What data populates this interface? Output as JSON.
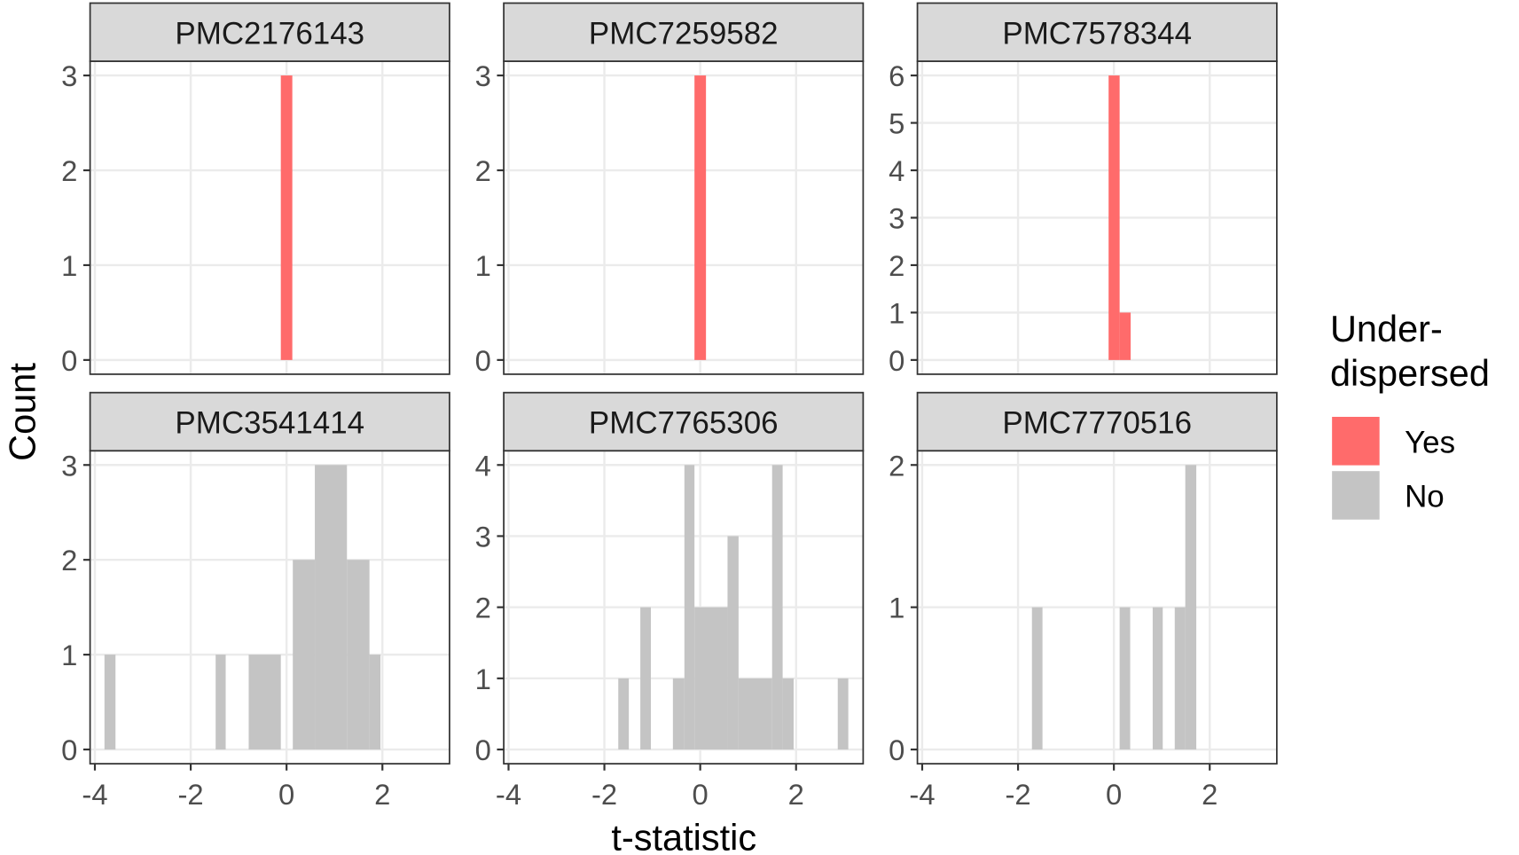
{
  "chart_data": {
    "type": "bar",
    "subtype": "faceted histogram",
    "xlabel": "t-statistic",
    "ylabel": "Count",
    "xlim": [
      -4.1,
      3.4
    ],
    "xticks": [
      -4,
      -2,
      0,
      2
    ],
    "grid": true,
    "legend": {
      "title": [
        "Under-",
        "dispersed"
      ],
      "placement": "right",
      "entries": [
        {
          "label": "Yes",
          "color": "#FF6B6B"
        },
        {
          "label": "No",
          "color": "#C4C4C4"
        }
      ]
    },
    "bar_format": "[x_start, x_end, count]",
    "panels": [
      {
        "title": "PMC2176143",
        "yticks": [
          0,
          1,
          2,
          3
        ],
        "ymax": 3,
        "group": "Yes",
        "bars": [
          [
            -0.12,
            0.12,
            3
          ]
        ]
      },
      {
        "title": "PMC7259582",
        "yticks": [
          0,
          1,
          2,
          3
        ],
        "ymax": 3,
        "group": "Yes",
        "bars": [
          [
            -0.12,
            0.12,
            3
          ]
        ]
      },
      {
        "title": "PMC7578344",
        "yticks": [
          0,
          1,
          2,
          3,
          4,
          5,
          6
        ],
        "ymax": 6,
        "group": "Yes",
        "bars": [
          [
            -0.11,
            0.12,
            6
          ],
          [
            0.12,
            0.35,
            1
          ]
        ]
      },
      {
        "title": "PMC3541414",
        "yticks": [
          0,
          1,
          2,
          3
        ],
        "ymax": 3,
        "group": "No",
        "bars": [
          [
            -3.8,
            -3.57,
            1
          ],
          [
            -1.48,
            -1.27,
            1
          ],
          [
            -0.79,
            -0.12,
            1
          ],
          [
            0.13,
            0.59,
            2
          ],
          [
            0.59,
            1.26,
            3
          ],
          [
            1.26,
            1.73,
            2
          ],
          [
            1.73,
            1.96,
            1
          ]
        ]
      },
      {
        "title": "PMC7765306",
        "yticks": [
          0,
          1,
          2,
          3,
          4
        ],
        "ymax": 4,
        "group": "No",
        "bars": [
          [
            -1.71,
            -1.49,
            1
          ],
          [
            -1.25,
            -1.03,
            2
          ],
          [
            -0.57,
            -0.33,
            1
          ],
          [
            -0.33,
            -0.12,
            4
          ],
          [
            -0.12,
            0.57,
            2
          ],
          [
            0.57,
            0.8,
            3
          ],
          [
            0.8,
            1.5,
            1
          ],
          [
            1.5,
            1.72,
            4
          ],
          [
            1.72,
            1.95,
            1
          ],
          [
            2.87,
            3.09,
            1
          ]
        ]
      },
      {
        "title": "PMC7770516",
        "yticks": [
          0,
          1,
          2
        ],
        "ymax": 2,
        "group": "No",
        "bars": [
          [
            -1.71,
            -1.49,
            1
          ],
          [
            0.12,
            0.34,
            1
          ],
          [
            0.81,
            1.02,
            1
          ],
          [
            1.27,
            1.49,
            1
          ],
          [
            1.49,
            1.72,
            2
          ]
        ]
      }
    ]
  }
}
